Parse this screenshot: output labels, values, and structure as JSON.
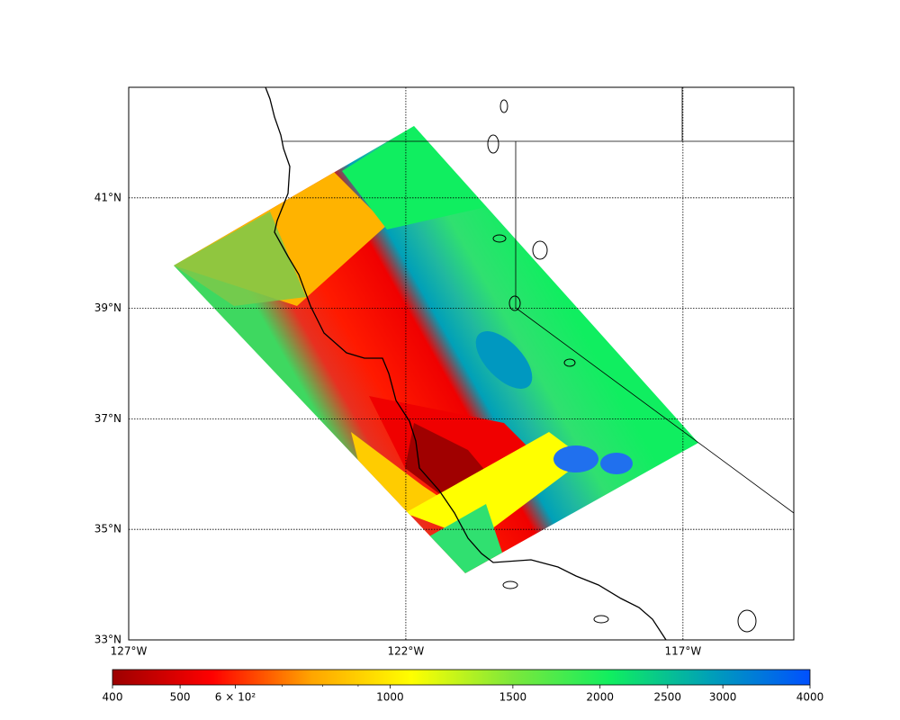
{
  "chart_data": {
    "type": "map",
    "xlim": [
      -127,
      -115
    ],
    "ylim": [
      33,
      43
    ],
    "xticks": [
      {
        "value": -127,
        "label": "127°W"
      },
      {
        "value": -122,
        "label": "122°W"
      },
      {
        "value": -117,
        "label": "117°W"
      }
    ],
    "yticks": [
      {
        "value": 33,
        "label": "33°N"
      },
      {
        "value": 35,
        "label": "35°N"
      },
      {
        "value": 37,
        "label": "37°N"
      },
      {
        "value": 39,
        "label": "39°N"
      },
      {
        "value": 41,
        "label": "41°N"
      }
    ],
    "grid": true,
    "colorbar": {
      "scale": "log",
      "lim": [
        400,
        4000
      ],
      "ticks": [
        400,
        500,
        {
          "value": 600,
          "label": "6 × 10²"
        },
        1000,
        1500,
        2000,
        2500,
        3000,
        4000
      ],
      "minor_ticks": [
        700,
        800,
        900
      ],
      "colors": [
        "#9c0000",
        "#ff0000",
        "#ffa500",
        "#ffff00",
        "#7ee83a",
        "#10ee60",
        "#00a0b8",
        "#0050ff"
      ]
    }
  }
}
